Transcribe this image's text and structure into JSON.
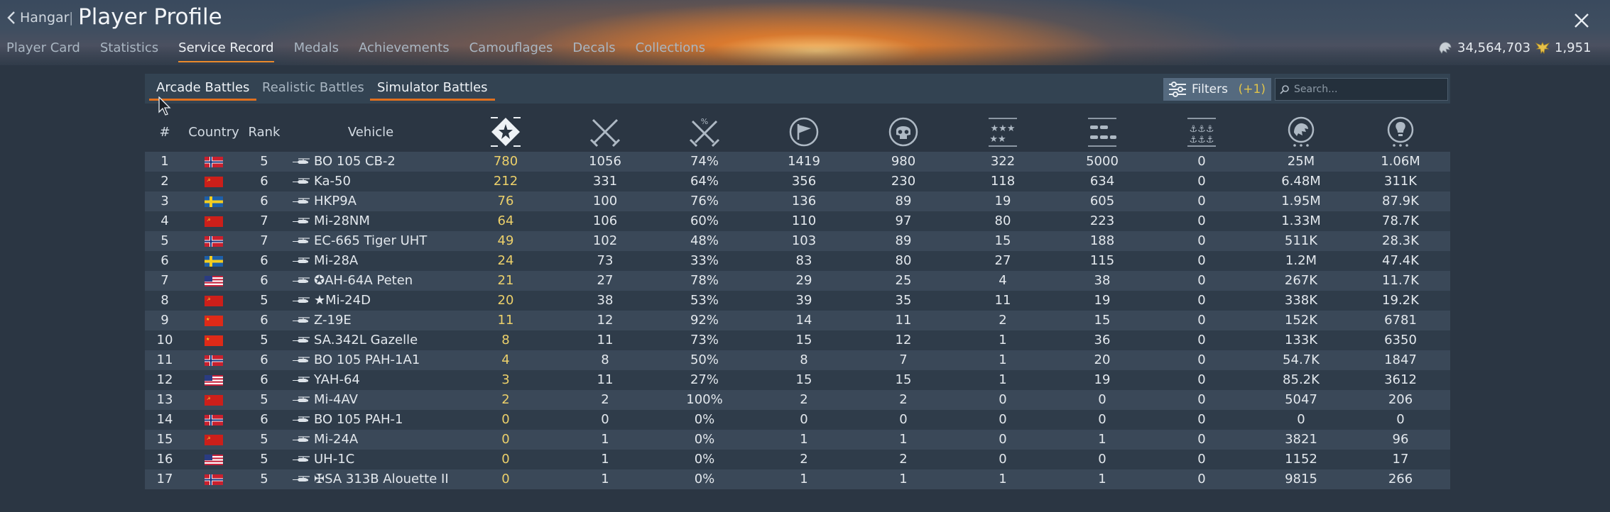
{
  "header": {
    "back_label": "Hangar",
    "separator": "|",
    "title": "Player Profile",
    "close_icon": "close-icon",
    "tabs": [
      {
        "label": "Player Card",
        "active": false
      },
      {
        "label": "Statistics",
        "active": false
      },
      {
        "label": "Service Record",
        "active": true
      },
      {
        "label": "Medals",
        "active": false
      },
      {
        "label": "Achievements",
        "active": false
      },
      {
        "label": "Camouflages",
        "active": false
      },
      {
        "label": "Decals",
        "active": false
      },
      {
        "label": "Collections",
        "active": false
      }
    ],
    "silver_lions": "34,564,703",
    "golden_eagles": "1,951"
  },
  "mode_tabs": [
    {
      "label": "Arcade Battles",
      "active": true
    },
    {
      "label": "Realistic Battles",
      "active": false
    },
    {
      "label": "Simulator Battles",
      "active": true
    }
  ],
  "filters": {
    "label": "Filters",
    "count": "(+1)"
  },
  "search": {
    "placeholder": "Search..."
  },
  "columns": {
    "num": "#",
    "country": "Country",
    "rank": "Rank",
    "vehicle": "Vehicle",
    "icons": [
      "victories-icon",
      "battles-icon",
      "win-rate-icon",
      "respawns-icon",
      "kills-icon",
      "air-kills-icon",
      "ground-kills-icon",
      "naval-kills-icon",
      "silver-lions-earned-icon",
      "research-points-icon"
    ]
  },
  "colors": {
    "accent": "#e0701f",
    "kills_value": "#ecd06a",
    "filters_count": "#e0c34a"
  },
  "rows": [
    {
      "n": "1",
      "country": "norway",
      "rank": "5",
      "vehicle": "BO 105 CB-2",
      "c": [
        "780",
        "1056",
        "74%",
        "1419",
        "980",
        "322",
        "5000",
        "0",
        "25M",
        "1.06M"
      ]
    },
    {
      "n": "2",
      "country": "ussr",
      "rank": "6",
      "vehicle": "Ka-50",
      "c": [
        "212",
        "331",
        "64%",
        "356",
        "230",
        "118",
        "634",
        "0",
        "6.48M",
        "311K"
      ]
    },
    {
      "n": "3",
      "country": "sweden",
      "rank": "6",
      "vehicle": "HKP9A",
      "c": [
        "76",
        "100",
        "76%",
        "136",
        "89",
        "19",
        "605",
        "0",
        "1.95M",
        "87.9K"
      ]
    },
    {
      "n": "4",
      "country": "ussr",
      "rank": "7",
      "vehicle": "Mi-28NM",
      "c": [
        "64",
        "106",
        "60%",
        "110",
        "97",
        "80",
        "223",
        "0",
        "1.33M",
        "78.7K"
      ]
    },
    {
      "n": "5",
      "country": "norway",
      "rank": "7",
      "vehicle": "EC-665 Tiger UHT",
      "c": [
        "49",
        "102",
        "48%",
        "103",
        "89",
        "15",
        "188",
        "0",
        "511K",
        "28.3K"
      ]
    },
    {
      "n": "6",
      "country": "sweden",
      "rank": "6",
      "vehicle": "Mi-28A",
      "c": [
        "24",
        "73",
        "33%",
        "83",
        "80",
        "27",
        "115",
        "0",
        "1.2M",
        "47.4K"
      ]
    },
    {
      "n": "7",
      "country": "usa",
      "rank": "6",
      "vehicle": "✪AH-64A Peten",
      "c": [
        "21",
        "27",
        "78%",
        "29",
        "25",
        "4",
        "38",
        "0",
        "267K",
        "11.7K"
      ]
    },
    {
      "n": "8",
      "country": "ussr",
      "rank": "5",
      "vehicle": "★Mi-24D",
      "c": [
        "20",
        "38",
        "53%",
        "39",
        "35",
        "11",
        "19",
        "0",
        "338K",
        "19.2K"
      ]
    },
    {
      "n": "9",
      "country": "china",
      "rank": "6",
      "vehicle": "Z-19E",
      "c": [
        "11",
        "12",
        "92%",
        "14",
        "11",
        "2",
        "15",
        "0",
        "152K",
        "6781"
      ]
    },
    {
      "n": "10",
      "country": "china",
      "rank": "5",
      "vehicle": "SA.342L Gazelle",
      "c": [
        "8",
        "11",
        "73%",
        "15",
        "12",
        "1",
        "36",
        "0",
        "133K",
        "6350"
      ]
    },
    {
      "n": "11",
      "country": "norway",
      "rank": "6",
      "vehicle": "BO 105 PAH-1A1",
      "c": [
        "4",
        "8",
        "50%",
        "8",
        "7",
        "1",
        "20",
        "0",
        "54.7K",
        "1847"
      ]
    },
    {
      "n": "12",
      "country": "usa",
      "rank": "6",
      "vehicle": "YAH-64",
      "c": [
        "3",
        "11",
        "27%",
        "15",
        "15",
        "1",
        "19",
        "0",
        "85.2K",
        "3612"
      ]
    },
    {
      "n": "13",
      "country": "ussr",
      "rank": "5",
      "vehicle": "Mi-4AV",
      "c": [
        "2",
        "2",
        "100%",
        "2",
        "2",
        "0",
        "0",
        "0",
        "5047",
        "206"
      ]
    },
    {
      "n": "14",
      "country": "norway",
      "rank": "6",
      "vehicle": "BO 105 PAH-1",
      "c": [
        "0",
        "0",
        "0%",
        "0",
        "0",
        "0",
        "0",
        "0",
        "0",
        "0"
      ]
    },
    {
      "n": "15",
      "country": "ussr",
      "rank": "5",
      "vehicle": "Mi-24A",
      "c": [
        "0",
        "1",
        "0%",
        "1",
        "1",
        "0",
        "1",
        "0",
        "3821",
        "96"
      ]
    },
    {
      "n": "16",
      "country": "usa",
      "rank": "5",
      "vehicle": "UH-1C",
      "c": [
        "0",
        "1",
        "0%",
        "2",
        "2",
        "0",
        "0",
        "0",
        "1152",
        "17"
      ]
    },
    {
      "n": "17",
      "country": "norway",
      "rank": "5",
      "vehicle": "✠SA 313B Alouette II",
      "c": [
        "0",
        "1",
        "0%",
        "1",
        "1",
        "1",
        "1",
        "0",
        "9815",
        "266"
      ]
    }
  ]
}
